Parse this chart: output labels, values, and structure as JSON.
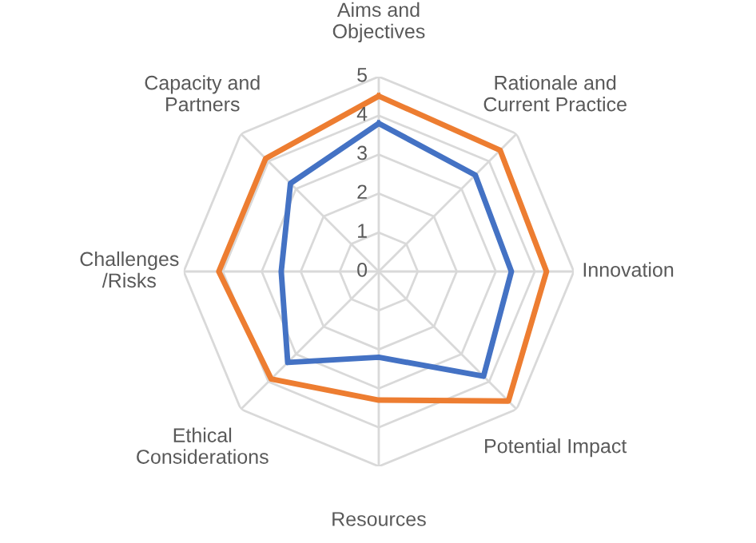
{
  "chart_data": {
    "type": "radar",
    "categories": [
      "Aims and\nObjectives",
      "Rationale and\nCurrent Practice",
      "Innovation",
      "Potential Impact",
      "Resources",
      "Ethical\nConsiderations",
      "Challenges\n/Risks",
      "Capacity and\nPartners"
    ],
    "series": [
      {
        "color": "#ed7d31",
        "values": [
          4.5,
          4.4,
          4.3,
          4.7,
          3.3,
          3.9,
          4.1,
          4.1
        ]
      },
      {
        "color": "#4472c4",
        "values": [
          3.8,
          3.5,
          3.4,
          3.8,
          2.2,
          3.3,
          2.5,
          3.2
        ]
      }
    ],
    "ylim": [
      0,
      5
    ],
    "yticks": [
      0,
      1,
      2,
      3,
      4,
      5
    ],
    "grid": true,
    "marker": "none",
    "line_style": "solid"
  }
}
